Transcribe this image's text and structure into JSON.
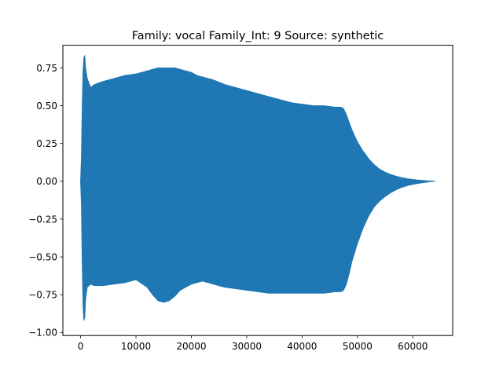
{
  "chart_data": {
    "type": "area",
    "title": "Family: vocal Family_Int: 9 Source: synthetic",
    "xlabel": "",
    "ylabel": "",
    "xlim": [
      -3200,
      67200
    ],
    "ylim": [
      -1.02,
      0.9
    ],
    "x_ticks": [
      0,
      10000,
      20000,
      30000,
      40000,
      50000,
      60000
    ],
    "x_tick_labels": [
      "0",
      "10000",
      "20000",
      "30000",
      "40000",
      "50000",
      "60000"
    ],
    "y_ticks": [
      -1.0,
      -0.75,
      -0.5,
      -0.25,
      0.0,
      0.25,
      0.5,
      0.75
    ],
    "y_tick_labels": [
      "−1.00",
      "−0.75",
      "−0.50",
      "−0.25",
      "0.00",
      "0.25",
      "0.50",
      "0.75"
    ],
    "grid": false,
    "legend": "none",
    "series_color": "#1f77b4",
    "series": [
      {
        "name": "",
        "x": [
          0,
          150,
          300,
          450,
          600,
          750,
          900,
          1200,
          1800,
          2500,
          4000,
          6000,
          8000,
          10000,
          12000,
          13000,
          14000,
          15000,
          16000,
          17000,
          18000,
          19000,
          20000,
          21000,
          22000,
          24000,
          26000,
          28000,
          30000,
          32000,
          34000,
          36000,
          38000,
          40000,
          42000,
          44000,
          46000,
          47000,
          47500,
          48000,
          48500,
          49000,
          50000,
          51000,
          52000,
          53000,
          54000,
          55000,
          56000,
          57000,
          58000,
          59000,
          60000,
          61000,
          62000,
          63000,
          64000
        ],
        "upper": [
          0.0,
          0.15,
          0.5,
          0.73,
          0.82,
          0.83,
          0.75,
          0.68,
          0.62,
          0.64,
          0.66,
          0.68,
          0.7,
          0.71,
          0.73,
          0.74,
          0.75,
          0.75,
          0.75,
          0.75,
          0.74,
          0.73,
          0.72,
          0.7,
          0.69,
          0.67,
          0.64,
          0.62,
          0.6,
          0.58,
          0.56,
          0.54,
          0.52,
          0.51,
          0.5,
          0.5,
          0.49,
          0.49,
          0.48,
          0.44,
          0.39,
          0.34,
          0.26,
          0.2,
          0.15,
          0.11,
          0.08,
          0.06,
          0.045,
          0.033,
          0.024,
          0.017,
          0.012,
          0.008,
          0.005,
          0.002,
          0.0
        ],
        "lower": [
          0.0,
          -0.15,
          -0.55,
          -0.83,
          -0.92,
          -0.9,
          -0.78,
          -0.7,
          -0.68,
          -0.69,
          -0.69,
          -0.68,
          -0.67,
          -0.65,
          -0.7,
          -0.75,
          -0.79,
          -0.8,
          -0.79,
          -0.76,
          -0.72,
          -0.7,
          -0.68,
          -0.67,
          -0.66,
          -0.68,
          -0.7,
          -0.71,
          -0.72,
          -0.73,
          -0.74,
          -0.74,
          -0.74,
          -0.74,
          -0.74,
          -0.74,
          -0.73,
          -0.73,
          -0.72,
          -0.68,
          -0.61,
          -0.53,
          -0.41,
          -0.31,
          -0.23,
          -0.17,
          -0.13,
          -0.1,
          -0.075,
          -0.055,
          -0.04,
          -0.028,
          -0.02,
          -0.013,
          -0.008,
          -0.003,
          0.0
        ]
      }
    ]
  }
}
